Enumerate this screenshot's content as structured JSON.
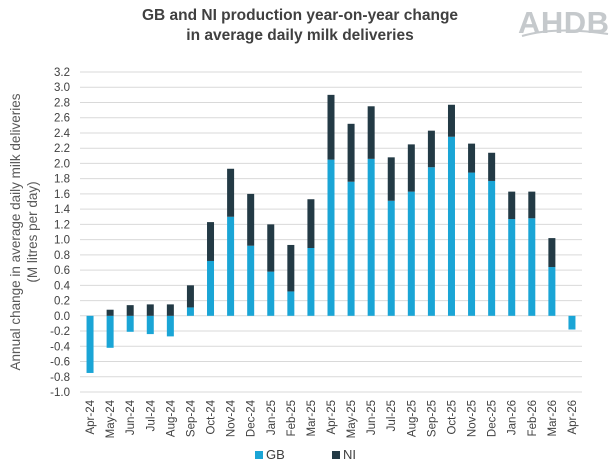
{
  "header": {
    "title_line1": "GB and NI production year-on-year change",
    "title_line2": "in average daily milk deliveries",
    "logo_text": "AHDB"
  },
  "chart_data": {
    "type": "bar",
    "stacked": true,
    "title": "GB and NI production year-on-year change in average daily milk deliveries",
    "ylabel_line1": "Annual change in average daily milk deliveries",
    "ylabel_line2": "(M litres per day)",
    "ylim": [
      -1.0,
      3.2
    ],
    "ytick_step": 0.2,
    "grid": true,
    "legend_position": "bottom",
    "categories": [
      "Apr-24",
      "May-24",
      "Jun-24",
      "Jul-24",
      "Aug-24",
      "Sep-24",
      "Oct-24",
      "Nov-24",
      "Dec-24",
      "Jan-25",
      "Feb-25",
      "Mar-25",
      "Apr-25",
      "May-25",
      "Jun-25",
      "Jul-25",
      "Aug-25",
      "Sep-25",
      "Oct-25",
      "Nov-25",
      "Dec-25",
      "Jan-26",
      "Feb-26",
      "Mar-26",
      "Apr-26"
    ],
    "series": [
      {
        "name": "GB",
        "color": "#1aa5d6",
        "values": [
          -0.75,
          -0.42,
          -0.21,
          -0.24,
          -0.27,
          0.11,
          0.72,
          1.3,
          0.92,
          0.58,
          0.32,
          0.89,
          2.05,
          1.76,
          2.06,
          1.51,
          1.63,
          1.95,
          2.35,
          1.88,
          1.77,
          1.27,
          1.28,
          0.64,
          -0.18
        ]
      },
      {
        "name": "NI",
        "color": "#233a45",
        "values": [
          0.0,
          0.08,
          0.14,
          0.15,
          0.15,
          0.29,
          0.51,
          0.63,
          0.68,
          0.62,
          0.61,
          0.64,
          0.85,
          0.76,
          0.69,
          0.57,
          0.62,
          0.48,
          0.42,
          0.38,
          0.37,
          0.36,
          0.35,
          0.38,
          0.0
        ]
      }
    ]
  }
}
